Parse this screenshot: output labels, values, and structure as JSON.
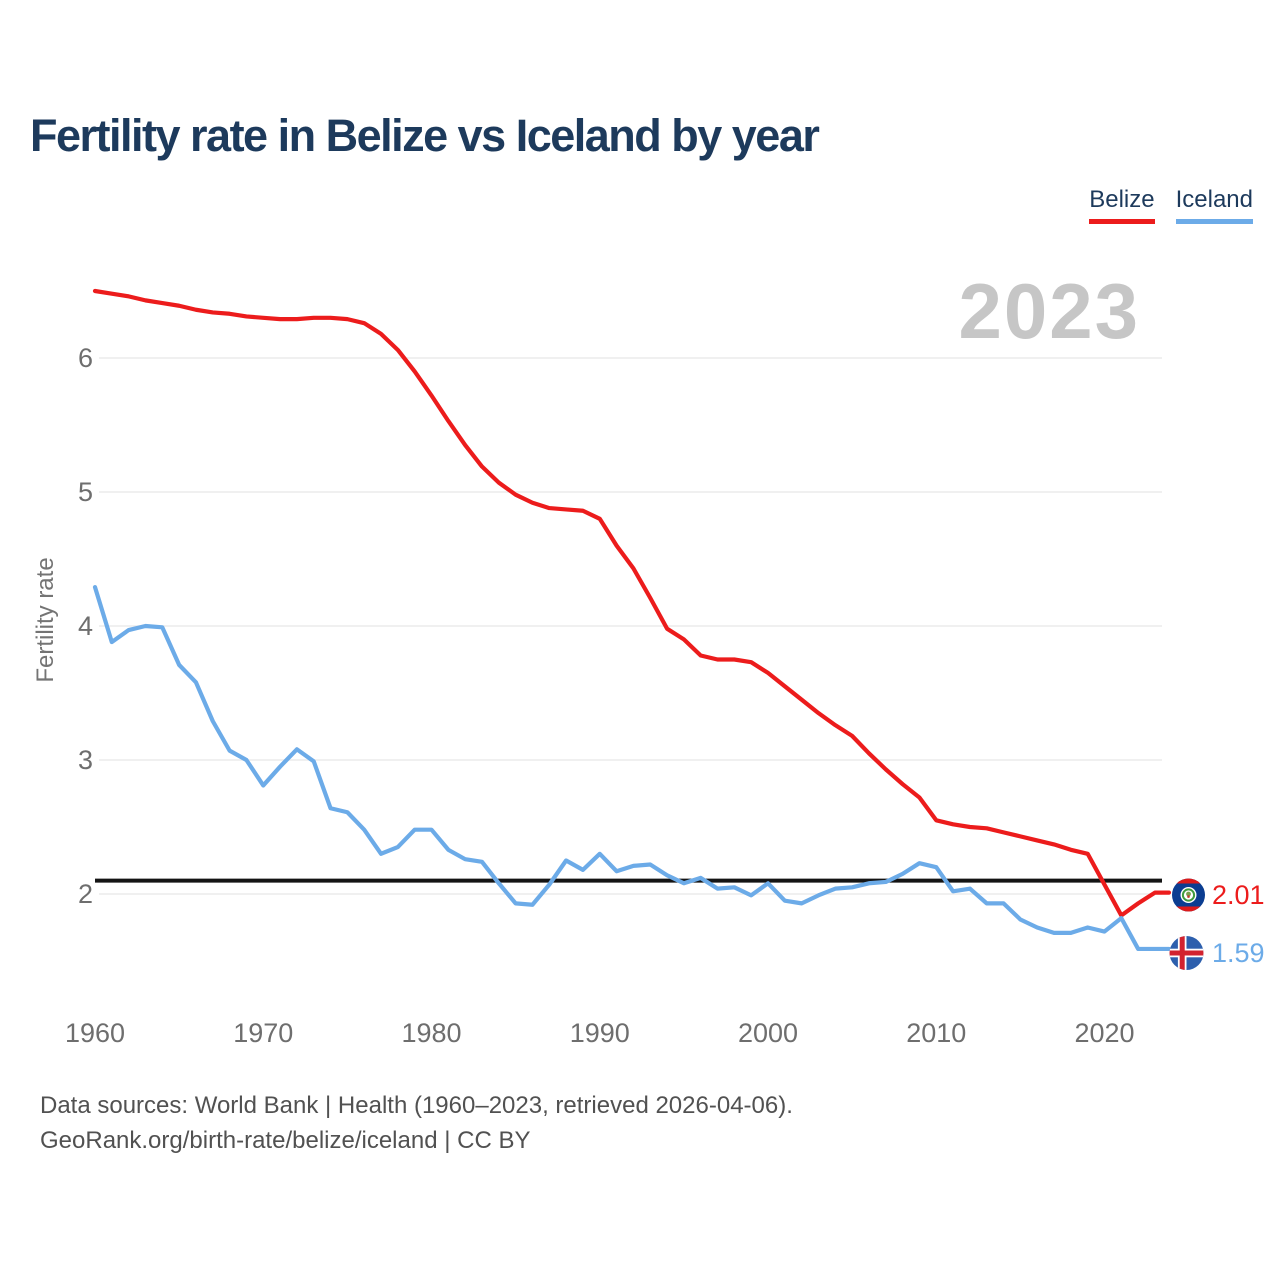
{
  "title": "Fertility rate in Belize vs Iceland by year",
  "watermark": "2023",
  "legend": [
    {
      "label": "Belize",
      "color": "#ec1c1c"
    },
    {
      "label": "Iceland",
      "color": "#6cabe8"
    }
  ],
  "footer": {
    "line1": "Data sources: World Bank | Health (1960–2023, retrieved 2026-04-06).",
    "line2": "GeoRank.org/birth-rate/belize/iceland | CC BY"
  },
  "chart_data": {
    "type": "line",
    "title": "Fertility rate in Belize vs Iceland by year",
    "xlabel": "",
    "ylabel": "Fertility rate",
    "x_range": [
      1960,
      2023
    ],
    "ylim": [
      1.4,
      6.7
    ],
    "yticks": [
      2,
      3,
      4,
      5,
      6
    ],
    "xticks": [
      1960,
      1970,
      1980,
      1990,
      2000,
      2010,
      2020
    ],
    "grid": "horizontal",
    "legend_position": "top-right",
    "reference_line": {
      "value": 2.1,
      "color": "#141414"
    },
    "x": [
      1960,
      1961,
      1962,
      1963,
      1964,
      1965,
      1966,
      1967,
      1968,
      1969,
      1970,
      1971,
      1972,
      1973,
      1974,
      1975,
      1976,
      1977,
      1978,
      1979,
      1980,
      1981,
      1982,
      1983,
      1984,
      1985,
      1986,
      1987,
      1988,
      1989,
      1990,
      1991,
      1992,
      1993,
      1994,
      1995,
      1996,
      1997,
      1998,
      1999,
      2000,
      2001,
      2002,
      2003,
      2004,
      2005,
      2006,
      2007,
      2008,
      2009,
      2010,
      2011,
      2012,
      2013,
      2014,
      2015,
      2016,
      2017,
      2018,
      2019,
      2020,
      2021,
      2022,
      2023
    ],
    "series": [
      {
        "name": "Belize",
        "color": "#ec1c1c",
        "end_label": "2.01",
        "values": [
          6.5,
          6.48,
          6.46,
          6.43,
          6.41,
          6.39,
          6.36,
          6.34,
          6.33,
          6.31,
          6.3,
          6.29,
          6.29,
          6.3,
          6.3,
          6.29,
          6.26,
          6.18,
          6.06,
          5.9,
          5.72,
          5.53,
          5.35,
          5.19,
          5.07,
          4.98,
          4.92,
          4.88,
          4.87,
          4.86,
          4.8,
          4.6,
          4.43,
          4.21,
          3.98,
          3.9,
          3.78,
          3.75,
          3.75,
          3.73,
          3.65,
          3.55,
          3.45,
          3.35,
          3.26,
          3.18,
          3.05,
          2.93,
          2.82,
          2.72,
          2.55,
          2.52,
          2.5,
          2.49,
          2.46,
          2.43,
          2.4,
          2.37,
          2.33,
          2.3,
          2.07,
          1.84,
          1.93,
          2.01
        ]
      },
      {
        "name": "Iceland",
        "color": "#6cabe8",
        "end_label": "1.59",
        "values": [
          4.29,
          3.88,
          3.97,
          4.0,
          3.99,
          3.71,
          3.58,
          3.29,
          3.07,
          3.0,
          2.81,
          2.95,
          3.08,
          2.99,
          2.64,
          2.61,
          2.48,
          2.3,
          2.35,
          2.48,
          2.48,
          2.33,
          2.26,
          2.24,
          2.08,
          1.93,
          1.92,
          2.07,
          2.25,
          2.18,
          2.3,
          2.17,
          2.21,
          2.22,
          2.14,
          2.08,
          2.12,
          2.04,
          2.05,
          1.99,
          2.08,
          1.95,
          1.93,
          1.99,
          2.04,
          2.05,
          2.08,
          2.09,
          2.15,
          2.23,
          2.2,
          2.02,
          2.04,
          1.93,
          1.93,
          1.81,
          1.75,
          1.71,
          1.71,
          1.75,
          1.72,
          1.82,
          1.59,
          1.59
        ]
      }
    ]
  }
}
